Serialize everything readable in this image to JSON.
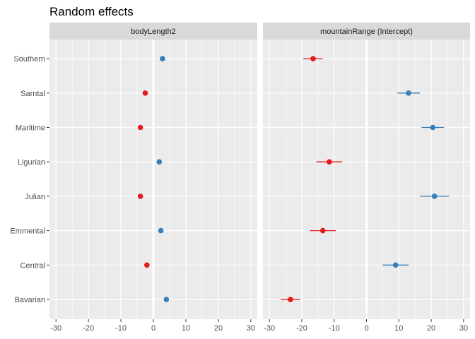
{
  "chart_data": {
    "type": "scatter",
    "title": "Random effects",
    "categories": [
      "Bavarian",
      "Central",
      "Emmental",
      "Julian",
      "Ligurian",
      "Maritime",
      "Sarntal",
      "Southern"
    ],
    "xlim": [
      -32,
      32
    ],
    "xticks": [
      -30,
      -20,
      -10,
      0,
      10,
      20,
      30
    ],
    "colors": {
      "negative": "#e41a1c",
      "positive": "#377eb8",
      "panel_bg": "#ebebeb",
      "strip_bg": "#d9d9d9",
      "grid": "#ffffff"
    },
    "grid": true,
    "legend": "none",
    "panels": [
      {
        "strip": "bodyLength2",
        "points": [
          {
            "category": "Bavarian",
            "value": 4.0,
            "low": 3.4,
            "high": 4.6
          },
          {
            "category": "Central",
            "value": -2.0,
            "low": -2.5,
            "high": -1.5
          },
          {
            "category": "Emmental",
            "value": 2.3,
            "low": 1.8,
            "high": 2.8
          },
          {
            "category": "Julian",
            "value": -4.0,
            "low": -4.5,
            "high": -3.5
          },
          {
            "category": "Ligurian",
            "value": 1.8,
            "low": 1.3,
            "high": 2.3
          },
          {
            "category": "Maritime",
            "value": -4.0,
            "low": -4.5,
            "high": -3.5
          },
          {
            "category": "Sarntal",
            "value": -2.5,
            "low": -3.0,
            "high": -2.0
          },
          {
            "category": "Southern",
            "value": 2.8,
            "low": 2.3,
            "high": 3.3
          }
        ]
      },
      {
        "strip": "mountainRange (Intercept)",
        "points": [
          {
            "category": "Bavarian",
            "value": -23.5,
            "low": -26.5,
            "high": -20.5
          },
          {
            "category": "Central",
            "value": 9.0,
            "low": 5.0,
            "high": 13.0
          },
          {
            "category": "Emmental",
            "value": -13.5,
            "low": -17.5,
            "high": -9.5
          },
          {
            "category": "Julian",
            "value": 21.0,
            "low": 16.5,
            "high": 25.5
          },
          {
            "category": "Ligurian",
            "value": -11.5,
            "low": -15.5,
            "high": -7.5
          },
          {
            "category": "Maritime",
            "value": 20.5,
            "low": 17.0,
            "high": 24.0
          },
          {
            "category": "Sarntal",
            "value": 13.0,
            "low": 9.5,
            "high": 16.5
          },
          {
            "category": "Southern",
            "value": -16.5,
            "low": -19.5,
            "high": -13.5
          }
        ]
      }
    ]
  }
}
